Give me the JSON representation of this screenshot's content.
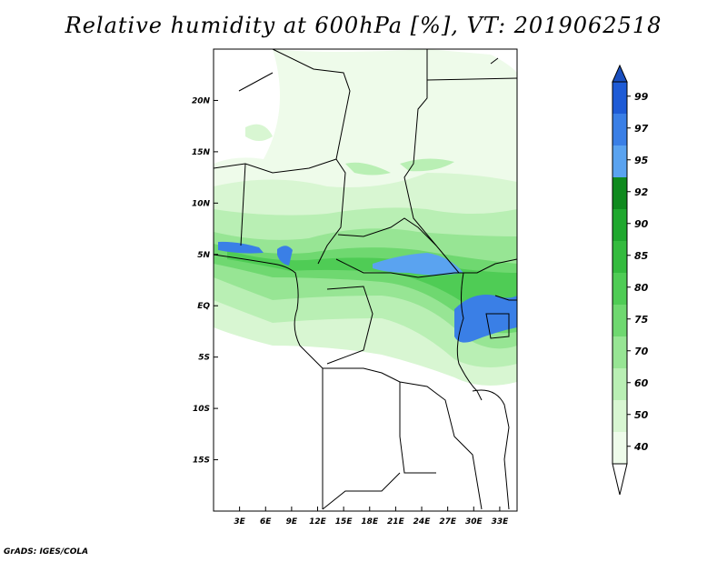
{
  "title": "Relative humidity at 600hPa [%], VT: 2019062518",
  "credit": "GrADS: IGES/COLA",
  "map": {
    "lon_range": [
      0,
      35
    ],
    "lat_range": [
      -20,
      25
    ],
    "lat_ticks": [
      {
        "value": 20,
        "label": "20N"
      },
      {
        "value": 15,
        "label": "15N"
      },
      {
        "value": 10,
        "label": "10N"
      },
      {
        "value": 5,
        "label": "5N"
      },
      {
        "value": 0,
        "label": "EQ"
      },
      {
        "value": -5,
        "label": "5S"
      },
      {
        "value": -10,
        "label": "10S"
      },
      {
        "value": -15,
        "label": "15S"
      }
    ],
    "lon_ticks": [
      {
        "value": 3,
        "label": "3E"
      },
      {
        "value": 6,
        "label": "6E"
      },
      {
        "value": 9,
        "label": "9E"
      },
      {
        "value": 12,
        "label": "12E"
      },
      {
        "value": 15,
        "label": "15E"
      },
      {
        "value": 18,
        "label": "18E"
      },
      {
        "value": 21,
        "label": "21E"
      },
      {
        "value": 24,
        "label": "24E"
      },
      {
        "value": 27,
        "label": "27E"
      },
      {
        "value": 30,
        "label": "30E"
      },
      {
        "value": 33,
        "label": "33E"
      }
    ]
  },
  "colorbar": {
    "levels": [
      "99",
      "97",
      "95",
      "92",
      "90",
      "85",
      "80",
      "75",
      "70",
      "60",
      "50",
      "40"
    ],
    "colors": [
      "#1e5bd6",
      "#3a7fe6",
      "#5aa3f0",
      "#0f8a1e",
      "#1fa82e",
      "#34bb3e",
      "#4fcc55",
      "#6fd870",
      "#97e594",
      "#b9efb4",
      "#d8f6d2",
      "#eefbea"
    ],
    "top_arrow_color": "#1a4fbf",
    "bottom_arrow_color": "#ffffff"
  }
}
